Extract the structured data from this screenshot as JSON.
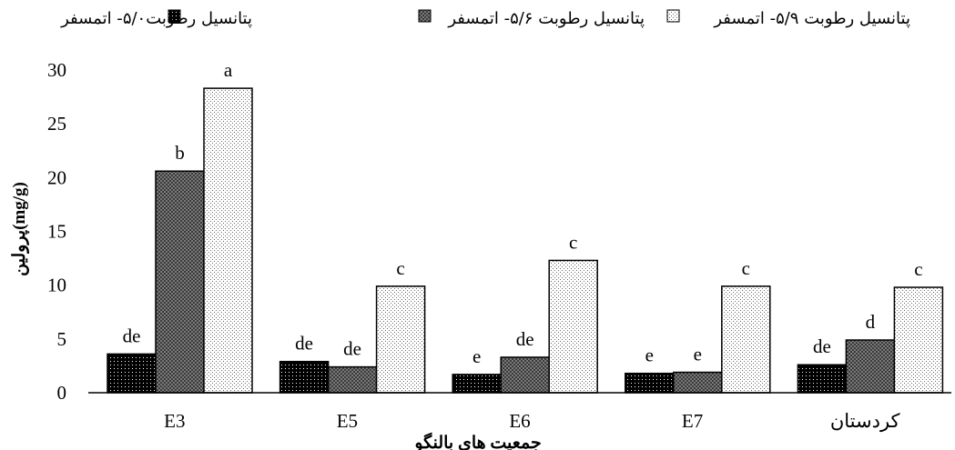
{
  "chart_data": {
    "type": "bar",
    "title": "",
    "xlabel": "جمعیت های بالنگو",
    "ylabel": "پرولین(mg/g)",
    "ylim": [
      0,
      30
    ],
    "yticks": [
      0,
      5,
      10,
      15,
      20,
      25,
      30
    ],
    "grid": false,
    "legend_position": "top",
    "categories": [
      "E3",
      "E5",
      "E6",
      "E7",
      "کردستان"
    ],
    "series": [
      {
        "name": "پتانسیل رطوبت۵/۰- اتمسفر",
        "pattern": "black-dots",
        "values": [
          3.6,
          2.9,
          1.7,
          1.8,
          2.6
        ],
        "labels": [
          "de",
          "de",
          "e",
          "e",
          "de"
        ]
      },
      {
        "name": "پتانسیل رطوبت ۵/۶- اتمسفر",
        "pattern": "gray-crosshatch",
        "values": [
          20.6,
          2.4,
          3.3,
          1.9,
          4.9
        ],
        "labels": [
          "b",
          "de",
          "de",
          "e",
          "d"
        ]
      },
      {
        "name": "پتانسیل رطوبت ۵/۹- اتمسفر",
        "pattern": "light-dots",
        "values": [
          28.3,
          9.9,
          12.3,
          9.9,
          9.8
        ],
        "labels": [
          "a",
          "c",
          "c",
          "c",
          "c"
        ]
      }
    ],
    "colors": {
      "axis": "#000000",
      "bar_outline": "#000000",
      "background": "#ffffff"
    }
  }
}
